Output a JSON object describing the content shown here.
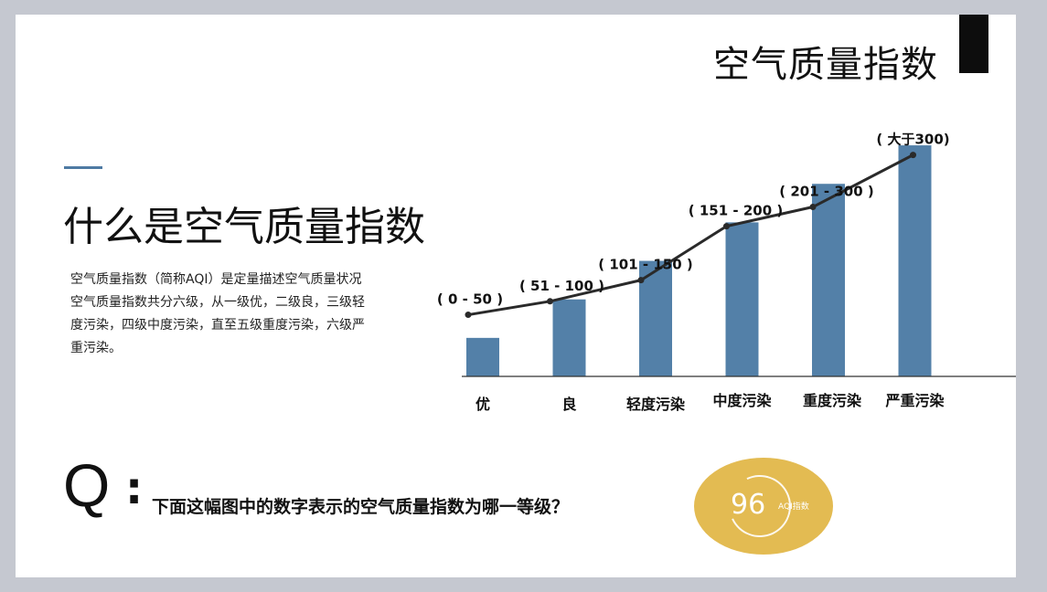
{
  "header": {
    "title": "空气质量指数"
  },
  "main": {
    "heading": "什么是空气质量指数",
    "description": [
      "空气质量指数（简称AQI）是定量描述空气质量状况",
      "空气质量指数共分六级，从一级优，二级良，三级轻度污染，四级中度污染，直至五级重度污染，六级严重污染。"
    ]
  },
  "question": {
    "letter": "Q",
    "colon": ":",
    "text": "下面这幅图中的数字表示的空气质量指数为哪一等级？"
  },
  "aqi_badge": {
    "value": "96",
    "label": "AQI指数"
  },
  "colors": {
    "bar": "#5380a8",
    "line": "#2a2a2a",
    "badge": "#e3bb52",
    "accent": "#4e7aa3"
  },
  "chart_data": {
    "type": "bar",
    "categories": [
      "优",
      "良",
      "轻度污染",
      "中度污染",
      "重度污染",
      "严重污染"
    ],
    "values": [
      1,
      2,
      3,
      4,
      5,
      6
    ],
    "annotations": [
      "( 0 - 50 )",
      "( 51 - 100 )",
      "( 101 - 150 )",
      "( 151 - 200 )",
      "( 201 - 300 )",
      "( 大于300)"
    ],
    "line_values": [
      1.6,
      1.95,
      2.5,
      3.9,
      4.4,
      5.75
    ],
    "ylim": [
      0,
      6.5
    ],
    "grid": false,
    "legend": "none"
  }
}
